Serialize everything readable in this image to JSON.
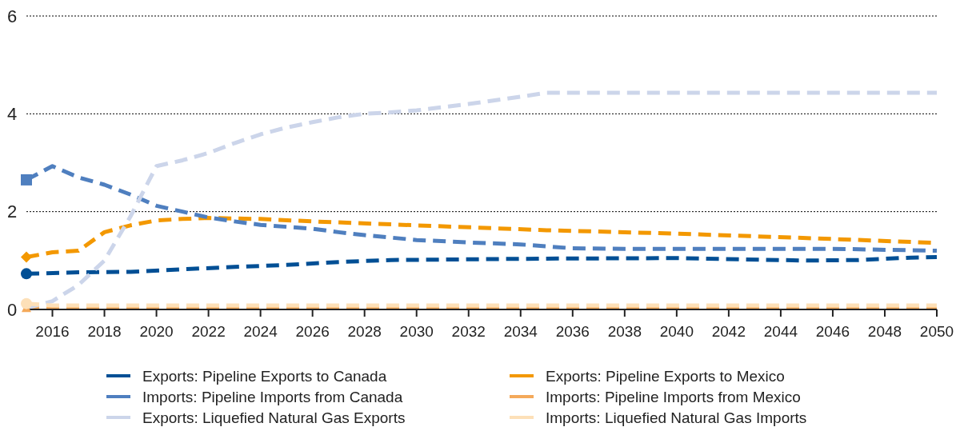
{
  "chart_data": {
    "type": "line",
    "xlim": [
      2015,
      2050
    ],
    "xticks": [
      2016,
      2018,
      2020,
      2022,
      2024,
      2026,
      2028,
      2030,
      2032,
      2034,
      2036,
      2038,
      2040,
      2042,
      2044,
      2046,
      2048,
      2050
    ],
    "ylim": [
      0,
      6
    ],
    "yticks": [
      0,
      2,
      4,
      6
    ],
    "grid": "y",
    "legend": "bottom",
    "line_style": "dashed",
    "series": [
      {
        "name": "Exports: Pipeline Exports to Canada",
        "color": "#004f95",
        "x": [
          2015,
          2017,
          2019,
          2021,
          2023,
          2025,
          2027,
          2029,
          2031,
          2035,
          2040,
          2045,
          2047,
          2049,
          2050
        ],
        "values": [
          0.73,
          0.76,
          0.77,
          0.82,
          0.87,
          0.91,
          0.97,
          1.01,
          1.02,
          1.04,
          1.05,
          1.0,
          1.01,
          1.06,
          1.07
        ]
      },
      {
        "name": "Exports: Pipeline Exports to Mexico",
        "color": "#f39800",
        "x": [
          2015,
          2016,
          2017,
          2018,
          2019,
          2020,
          2021,
          2022,
          2024,
          2026,
          2030,
          2035,
          2040,
          2045,
          2050
        ],
        "values": [
          1.07,
          1.17,
          1.2,
          1.58,
          1.72,
          1.82,
          1.85,
          1.87,
          1.85,
          1.8,
          1.72,
          1.62,
          1.55,
          1.46,
          1.36
        ]
      },
      {
        "name": "Imports: Pipeline Imports from Canada",
        "color": "#4f7fbf",
        "x": [
          2015,
          2016,
          2017,
          2018,
          2019,
          2020,
          2021,
          2022,
          2023,
          2024,
          2026,
          2027,
          2028,
          2030,
          2032,
          2034,
          2036,
          2038,
          2046,
          2050
        ],
        "values": [
          2.65,
          2.93,
          2.7,
          2.55,
          2.35,
          2.12,
          2.0,
          1.88,
          1.8,
          1.73,
          1.65,
          1.58,
          1.52,
          1.42,
          1.37,
          1.33,
          1.25,
          1.24,
          1.24,
          1.2
        ]
      },
      {
        "name": "Imports: Pipeline Imports from Mexico",
        "color": "#f4a95a",
        "x": [
          2015,
          2050
        ],
        "values": [
          0.03,
          0.03
        ]
      },
      {
        "name": "Exports: Liquefied Natural Gas Exports",
        "color": "#ccd5ea",
        "x": [
          2015,
          2016,
          2017,
          2018,
          2019,
          2020,
          2021,
          2022,
          2023,
          2024,
          2025,
          2026,
          2027,
          2028,
          2029,
          2030,
          2032,
          2034,
          2035,
          2050
        ],
        "values": [
          0.03,
          0.17,
          0.5,
          1.0,
          1.9,
          2.93,
          3.05,
          3.2,
          3.4,
          3.58,
          3.72,
          3.83,
          3.93,
          4.0,
          4.03,
          4.07,
          4.2,
          4.35,
          4.43,
          4.43
        ]
      },
      {
        "name": "Imports: Liquefied Natural Gas Imports",
        "color": "#fde0b8",
        "x": [
          2015,
          2016,
          2050
        ],
        "values": [
          0.12,
          0.08,
          0.08
        ]
      }
    ]
  }
}
